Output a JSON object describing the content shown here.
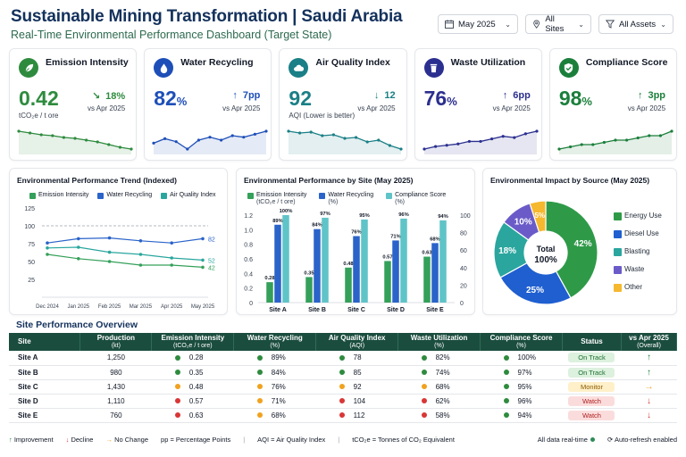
{
  "header": {
    "title": "Sustainable Mining Transformation | Saudi Arabia",
    "subtitle": "Real-Time Environmental Performance Dashboard (Target State)"
  },
  "filters": [
    {
      "label": "May 2025",
      "icon": "calendar-icon"
    },
    {
      "label": "All Sites",
      "icon": "location-pin-icon"
    },
    {
      "label": "All Assets",
      "icon": "filter-icon"
    }
  ],
  "kpis": [
    {
      "label": "Emission Intensity",
      "value": "0.42",
      "unit": "",
      "sub": "tCO₂e / t ore",
      "delta": "18%",
      "arrow": "↘",
      "vs": "vs Apr 2025",
      "color": "#2e8b3e",
      "icon": "leaf-icon",
      "spark": [
        0.62,
        0.6,
        0.58,
        0.57,
        0.55,
        0.54,
        0.52,
        0.5,
        0.47,
        0.44,
        0.42
      ]
    },
    {
      "label": "Water Recycling",
      "value": "82",
      "unit": "%",
      "sub": "",
      "delta": "7pp",
      "arrow": "↑",
      "vs": "vs Apr 2025",
      "color": "#1e4fb8",
      "icon": "water-drop-icon",
      "spark": [
        74,
        77,
        75,
        70,
        76,
        78,
        76,
        79,
        78,
        80,
        82
      ]
    },
    {
      "label": "Air Quality Index",
      "value": "92",
      "unit": "",
      "sub": "AQI (Lower is better)",
      "delta": "12",
      "arrow": "↓",
      "vs": "vs Apr 2025",
      "color": "#1a7f86",
      "icon": "cloud-icon",
      "spark": [
        112,
        110,
        111,
        107,
        108,
        104,
        105,
        100,
        102,
        96,
        92
      ]
    },
    {
      "label": "Waste Utilization",
      "value": "76",
      "unit": "%",
      "sub": "",
      "delta": "6pp",
      "arrow": "↑",
      "vs": "vs Apr 2025",
      "color": "#2b2f8f",
      "icon": "recycle-bin-icon",
      "spark": [
        62,
        64,
        65,
        66,
        68,
        68,
        70,
        72,
        71,
        74,
        76
      ]
    },
    {
      "label": "Compliance Score",
      "value": "98",
      "unit": "%",
      "sub": "",
      "delta": "3pp",
      "arrow": "↑",
      "vs": "vs Apr 2025",
      "color": "#1b7f3b",
      "icon": "shield-check-icon",
      "spark": [
        90,
        91,
        92,
        92,
        93,
        94,
        94,
        95,
        96,
        96,
        98
      ]
    }
  ],
  "trend": {
    "title": "Environmental Performance Trend (Indexed)",
    "series_labels": [
      "Emission Intensity",
      "Water Recycling",
      "Air Quality Index"
    ],
    "series_colors": [
      "#34a05a",
      "#2a63c9",
      "#2aa69e"
    ],
    "x_labels": [
      "Dec 2024",
      "Jan 2025",
      "Feb 2025",
      "Mar 2025",
      "Apr 2025",
      "May 2025"
    ],
    "y_ticks": [
      "125",
      "100",
      "75",
      "50",
      "25"
    ],
    "end_labels": [
      "42",
      "82",
      "52"
    ]
  },
  "bysite": {
    "title": "Environmental Performance by Site (May 2025)",
    "series": [
      {
        "label": "Emission Intensity",
        "unit": "(tCO₂e / t ore)",
        "color": "#34a05a"
      },
      {
        "label": "Water Recycling",
        "unit": "(%)",
        "color": "#2a63c9"
      },
      {
        "label": "Compliance Score",
        "unit": "(%)",
        "color": "#5fc4c7"
      }
    ],
    "left_ticks": [
      "1.2",
      "1.0",
      "0.8",
      "0.6",
      "0.4",
      "0.2",
      "0"
    ],
    "right_ticks": [
      "100",
      "80",
      "60",
      "40",
      "20",
      "0"
    ],
    "sites": [
      "Site A",
      "Site B",
      "Site C",
      "Site D",
      "Site E"
    ],
    "emission_labels": [
      "0.28",
      "0.35",
      "0.48",
      "0.57",
      "0.63"
    ],
    "water_labels": [
      "89%",
      "84%",
      "76%",
      "71%",
      "68%"
    ],
    "compliance_labels": [
      "100%",
      "97%",
      "95%",
      "96%",
      "94%"
    ]
  },
  "impact": {
    "title": "Environmental Impact by Source (May 2025)",
    "total_label": "Total",
    "total_value": "100%",
    "slices": [
      {
        "label": "Energy Use",
        "pct": "42%",
        "color": "#2e9a48"
      },
      {
        "label": "Diesel Use",
        "pct": "25%",
        "color": "#1f5fd0"
      },
      {
        "label": "Blasting",
        "pct": "18%",
        "color": "#2aa69e"
      },
      {
        "label": "Waste",
        "pct": "10%",
        "color": "#6b5bc8"
      },
      {
        "label": "Other",
        "pct": "5%",
        "color": "#f5b82e"
      }
    ]
  },
  "table": {
    "title": "Site Performance Overview",
    "headers": [
      {
        "label": "Site",
        "unit": ""
      },
      {
        "label": "Production",
        "unit": "(kt)"
      },
      {
        "label": "Emission Intensity",
        "unit": "(tCO₂e / t ore)"
      },
      {
        "label": "Water Recycling",
        "unit": "(%)"
      },
      {
        "label": "Air Quality Index",
        "unit": "(AQI)"
      },
      {
        "label": "Waste Utilization",
        "unit": "(%)"
      },
      {
        "label": "Compliance Score",
        "unit": "(%)"
      },
      {
        "label": "Status",
        "unit": ""
      },
      {
        "label": "vs Apr 2025",
        "unit": "(Overall)"
      }
    ],
    "rows": [
      {
        "site": "Site A",
        "production": "1,250",
        "emission": "0.28",
        "water": "89%",
        "aqi": "78",
        "waste": "82%",
        "compliance": "100%",
        "status": "On Track",
        "trend": "↑",
        "dots": [
          "#2e8b3e",
          "#2e8b3e",
          "#2e8b3e",
          "#2e8b3e",
          "#2e8b3e"
        ],
        "status_bg": "#dcf1de",
        "status_fg": "#1b6e2f",
        "trend_color": "#1b7f3b"
      },
      {
        "site": "Site B",
        "production": "980",
        "emission": "0.35",
        "water": "84%",
        "aqi": "85",
        "waste": "74%",
        "compliance": "97%",
        "status": "On Track",
        "trend": "↑",
        "dots": [
          "#2e8b3e",
          "#2e8b3e",
          "#2e8b3e",
          "#2e8b3e",
          "#2e8b3e"
        ],
        "status_bg": "#dcf1de",
        "status_fg": "#1b6e2f",
        "trend_color": "#1b7f3b"
      },
      {
        "site": "Site C",
        "production": "1,430",
        "emission": "0.48",
        "water": "76%",
        "aqi": "92",
        "waste": "68%",
        "compliance": "95%",
        "status": "Monitor",
        "trend": "→",
        "dots": [
          "#f0a21e",
          "#f0a21e",
          "#f0a21e",
          "#f0a21e",
          "#2e8b3e"
        ],
        "status_bg": "#fff0c9",
        "status_fg": "#8a5a00",
        "trend_color": "#f0a21e"
      },
      {
        "site": "Site D",
        "production": "1,110",
        "emission": "0.57",
        "water": "71%",
        "aqi": "104",
        "waste": "62%",
        "compliance": "96%",
        "status": "Watch",
        "trend": "↓",
        "dots": [
          "#d93636",
          "#f0a21e",
          "#d93636",
          "#d93636",
          "#2e8b3e"
        ],
        "status_bg": "#fbdcdc",
        "status_fg": "#b02222",
        "trend_color": "#d93636"
      },
      {
        "site": "Site E",
        "production": "760",
        "emission": "0.63",
        "water": "68%",
        "aqi": "112",
        "waste": "58%",
        "compliance": "94%",
        "status": "Watch",
        "trend": "↓",
        "dots": [
          "#d93636",
          "#f0a21e",
          "#d93636",
          "#d93636",
          "#2e8b3e"
        ],
        "status_bg": "#fbdcdc",
        "status_fg": "#b02222",
        "trend_color": "#d93636"
      }
    ]
  },
  "footer": {
    "improvement": "Improvement",
    "decline": "Decline",
    "no_change": "No Change",
    "pp_note": "pp = Percentage Points",
    "aqi_note": "AQI = Air Quality Index",
    "tco2_note": "tCO₂e = Tonnes of CO₂ Equivalent",
    "realtime": "All data real-time",
    "refresh": "Auto-refresh enabled"
  },
  "chart_data": [
    {
      "type": "line",
      "title": "Environmental Performance Trend (Indexed)",
      "categories": [
        "Dec 2024",
        "Jan 2025",
        "Feb 2025",
        "Mar 2025",
        "Apr 2025",
        "May 2025"
      ],
      "series": [
        {
          "name": "Emission Intensity",
          "values": [
            60,
            54,
            50,
            45,
            45,
            42
          ]
        },
        {
          "name": "Water Recycling",
          "values": [
            76,
            82,
            83,
            79,
            76,
            82
          ]
        },
        {
          "name": "Air Quality Index",
          "values": [
            69,
            70,
            63,
            60,
            55,
            52
          ]
        }
      ],
      "ylim": [
        0,
        125
      ],
      "reference_line": 100,
      "legend": "top"
    },
    {
      "type": "bar",
      "title": "Environmental Performance by Site (May 2025)",
      "categories": [
        "Site A",
        "Site B",
        "Site C",
        "Site D",
        "Site E"
      ],
      "series": [
        {
          "name": "Emission Intensity",
          "axis": "left",
          "values": [
            0.28,
            0.35,
            0.48,
            0.57,
            0.63
          ]
        },
        {
          "name": "Water Recycling",
          "axis": "right",
          "values": [
            89,
            84,
            76,
            71,
            68
          ]
        },
        {
          "name": "Compliance Score",
          "axis": "right",
          "values": [
            100,
            97,
            95,
            96,
            94
          ]
        }
      ],
      "ylim_left": [
        0,
        1.2
      ],
      "ylim_right": [
        0,
        100
      ],
      "legend": "top"
    },
    {
      "type": "pie",
      "title": "Environmental Impact by Source (May 2025)",
      "categories": [
        "Energy Use",
        "Diesel Use",
        "Blasting",
        "Waste",
        "Other"
      ],
      "values": [
        42,
        25,
        18,
        10,
        5
      ],
      "legend": "right"
    }
  ]
}
